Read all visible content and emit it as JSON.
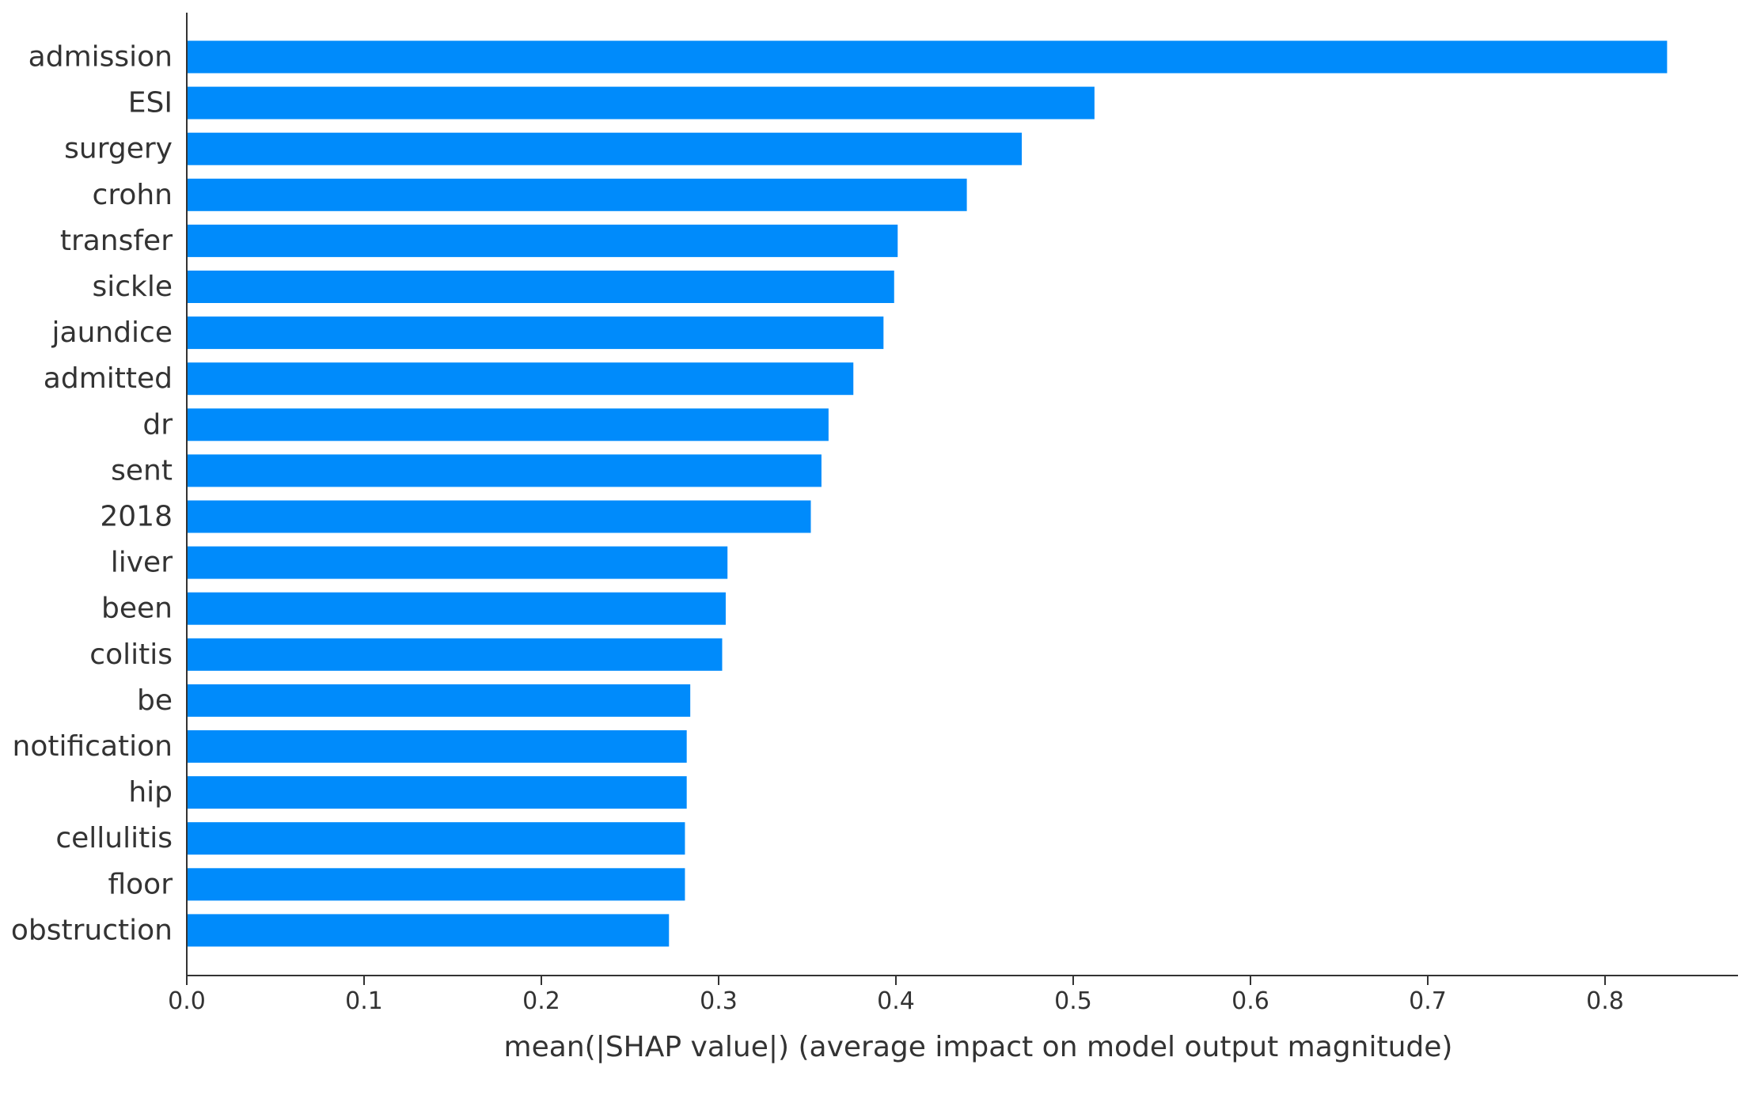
{
  "chart_data": {
    "type": "bar",
    "orientation": "horizontal",
    "categories": [
      "admission",
      "ESI",
      "surgery",
      "crohn",
      "transfer",
      "sickle",
      "jaundice",
      "admitted",
      "dr",
      "sent",
      "2018",
      "liver",
      "been",
      "colitis",
      "be",
      "notification",
      "hip",
      "cellulitis",
      "floor",
      "obstruction"
    ],
    "values": [
      0.835,
      0.512,
      0.471,
      0.44,
      0.401,
      0.399,
      0.393,
      0.376,
      0.362,
      0.358,
      0.352,
      0.305,
      0.304,
      0.302,
      0.284,
      0.282,
      0.282,
      0.281,
      0.281,
      0.272
    ],
    "xlabel": "mean(|SHAP value|) (average impact on model output magnitude)",
    "ylabel": "",
    "title": "",
    "xlim": [
      0.0,
      0.875
    ],
    "xticks": [
      "0.0",
      "0.1",
      "0.2",
      "0.3",
      "0.4",
      "0.5",
      "0.6",
      "0.7",
      "0.8"
    ],
    "grid": false,
    "colors": {
      "bar": "#008bfb",
      "axis": "#333333",
      "text": "#333333"
    }
  }
}
